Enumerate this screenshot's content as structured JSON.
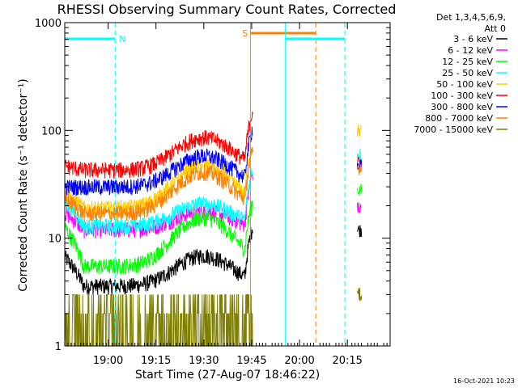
{
  "chart_data": {
    "type": "line",
    "title": "RHESSI Observing Summary Count Rates, Corrected",
    "xlabel": "Start Time (27-Aug-07 18:46:22)",
    "ylabel": "Corrected Count Rate (s⁻¹ detector⁻¹)",
    "y_scale": "log",
    "ylim": [
      1,
      1000
    ],
    "xlim_minutes_after_start": [
      0,
      102.0
    ],
    "x_ticks": [
      {
        "label": "19:00",
        "t": 13.6
      },
      {
        "label": "19:15",
        "t": 28.6
      },
      {
        "label": "19:30",
        "t": 43.6
      },
      {
        "label": "19:45",
        "t": 58.6
      },
      {
        "label": "20:00",
        "t": 73.6
      },
      {
        "label": "20:15",
        "t": 88.6
      }
    ],
    "y_ticks": [
      {
        "label": "1",
        "v": 1
      },
      {
        "label": "10",
        "v": 10
      },
      {
        "label": "100",
        "v": 100
      },
      {
        "label": "1000",
        "v": 1000
      }
    ],
    "legend_title": [
      "Det 1,3,4,5,6,9,",
      "Att 0"
    ],
    "legend_placement": "right",
    "series": [
      {
        "name": "3 - 6 keV",
        "color": "#000000",
        "base": 3.6,
        "amp": 3.3,
        "tail_end": 6.0,
        "post": 12
      },
      {
        "name": "6 - 12 keV",
        "color": "#ff00ff",
        "base": 12,
        "amp": 6,
        "tail_end": 16,
        "post": 19
      },
      {
        "name": "12 - 25 keV",
        "color": "#00ff00",
        "base": 5.5,
        "amp": 10,
        "tail_end": 11,
        "post": 28
      },
      {
        "name": "25 - 50 keV",
        "color": "#00ffff",
        "base": 13,
        "amp": 8,
        "tail_end": 20,
        "post": 60
      },
      {
        "name": "50 - 100 keV",
        "color": "#ffcc00",
        "base": 19,
        "amp": 29,
        "tail_end": 25,
        "post": 100
      },
      {
        "name": "100 - 300 keV",
        "color": "#ff0000",
        "base": 43,
        "amp": 43,
        "tail_end": 46,
        "post": 50
      },
      {
        "name": "300 - 800 keV",
        "color": "#0000ff",
        "base": 30,
        "amp": 28,
        "tail_end": 30,
        "post": 47
      },
      {
        "name": "800 - 7000 keV",
        "color": "#ff8000",
        "base": 17,
        "amp": 24,
        "tail_end": 22,
        "post": 45
      },
      {
        "name": "7000 - 15000 keV",
        "color": "#808000",
        "base": 1,
        "amp": 0,
        "tail_end": 1,
        "post": 3
      }
    ],
    "annotations": [
      {
        "label": "N",
        "type": "night",
        "color": "#00ffff",
        "t_start": 0,
        "t_end": 15.8
      },
      {
        "label": "S",
        "type": "saa",
        "color": "#ff8000",
        "t_start": 58.2,
        "t_end": 78.7
      },
      {
        "label": "",
        "type": "night",
        "color": "#00ffff",
        "t_start": 69.1,
        "t_end": 87.8
      }
    ],
    "timestamp": "16-Oct-2021 10:23"
  }
}
